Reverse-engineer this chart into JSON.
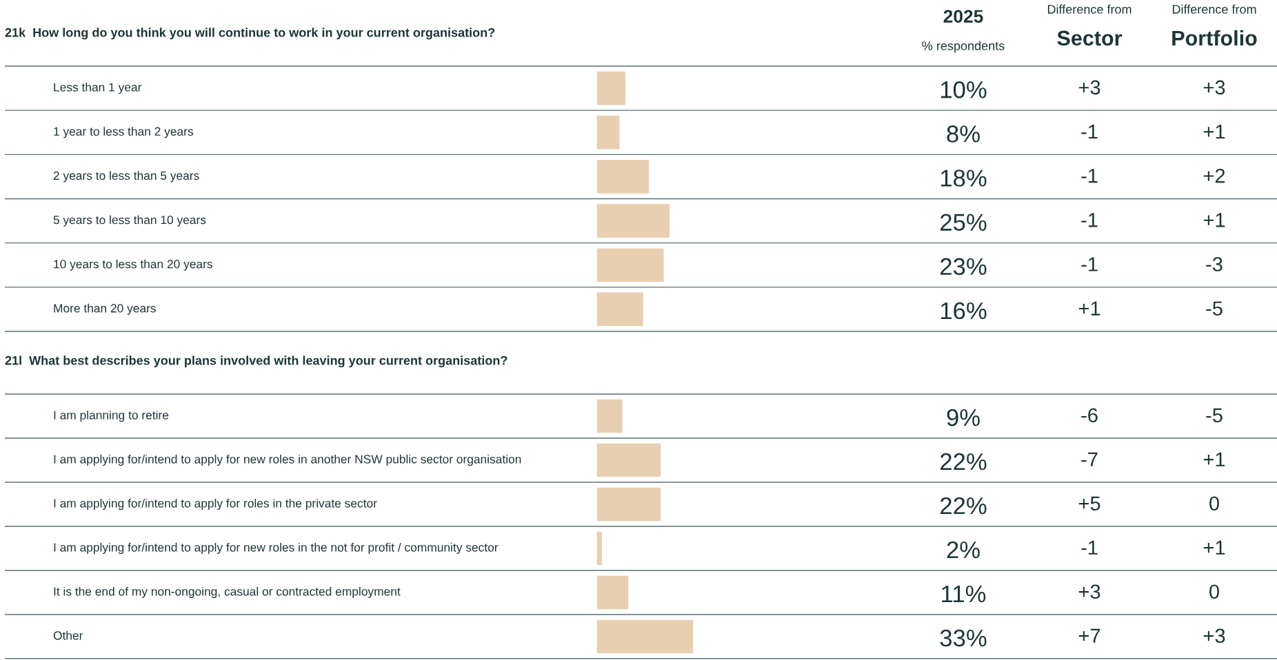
{
  "chart_data": [
    {
      "type": "bar",
      "orientation": "horizontal",
      "title": "21k  How long do you think you will continue to work in your current organisation?",
      "categories": [
        "Less than 1 year",
        "1 year to less than 2 years",
        "2 years to less than 5 years",
        "5 years to less than 10 years",
        "10 years to less than 20 years",
        "More than 20 years"
      ],
      "values": [
        10,
        8,
        18,
        25,
        23,
        16
      ],
      "color": "#e8cfb2",
      "value_labels": [
        "10%",
        "8%",
        "18%",
        "25%",
        "23%",
        "16%"
      ],
      "annotations": [
        "2025",
        "% respondents",
        "Difference from",
        "Sector",
        "Difference from",
        "Portfolio",
        "+3",
        "+3",
        "-1",
        "+1",
        "-1",
        "+2",
        "-1",
        "+1",
        "-1",
        "-3",
        "+1",
        "-5"
      ]
    },
    {
      "type": "bar",
      "orientation": "horizontal",
      "title": "21l  What best describes your plans involved with leaving your current organisation?",
      "categories": [
        "I am planning to retire",
        "I am applying for/intend to apply for new roles in another NSW public sector organisation",
        "I am applying for/intend to apply for roles in the private sector",
        "I am applying for/intend to apply for new roles in the not for profit / community sector",
        "It is the end of my non-ongoing, casual or contracted employment",
        "Other"
      ],
      "values": [
        9,
        22,
        22,
        2,
        11,
        33
      ],
      "color": "#e8cfb2",
      "value_labels": [
        "9%",
        "22%",
        "22%",
        "2%",
        "11%",
        "33%"
      ],
      "annotations": [
        "-6",
        "-5",
        "-7",
        "+1",
        "+5",
        "0",
        "-1",
        "+1",
        "+3",
        "0",
        "+7",
        "+3"
      ]
    }
  ]
}
